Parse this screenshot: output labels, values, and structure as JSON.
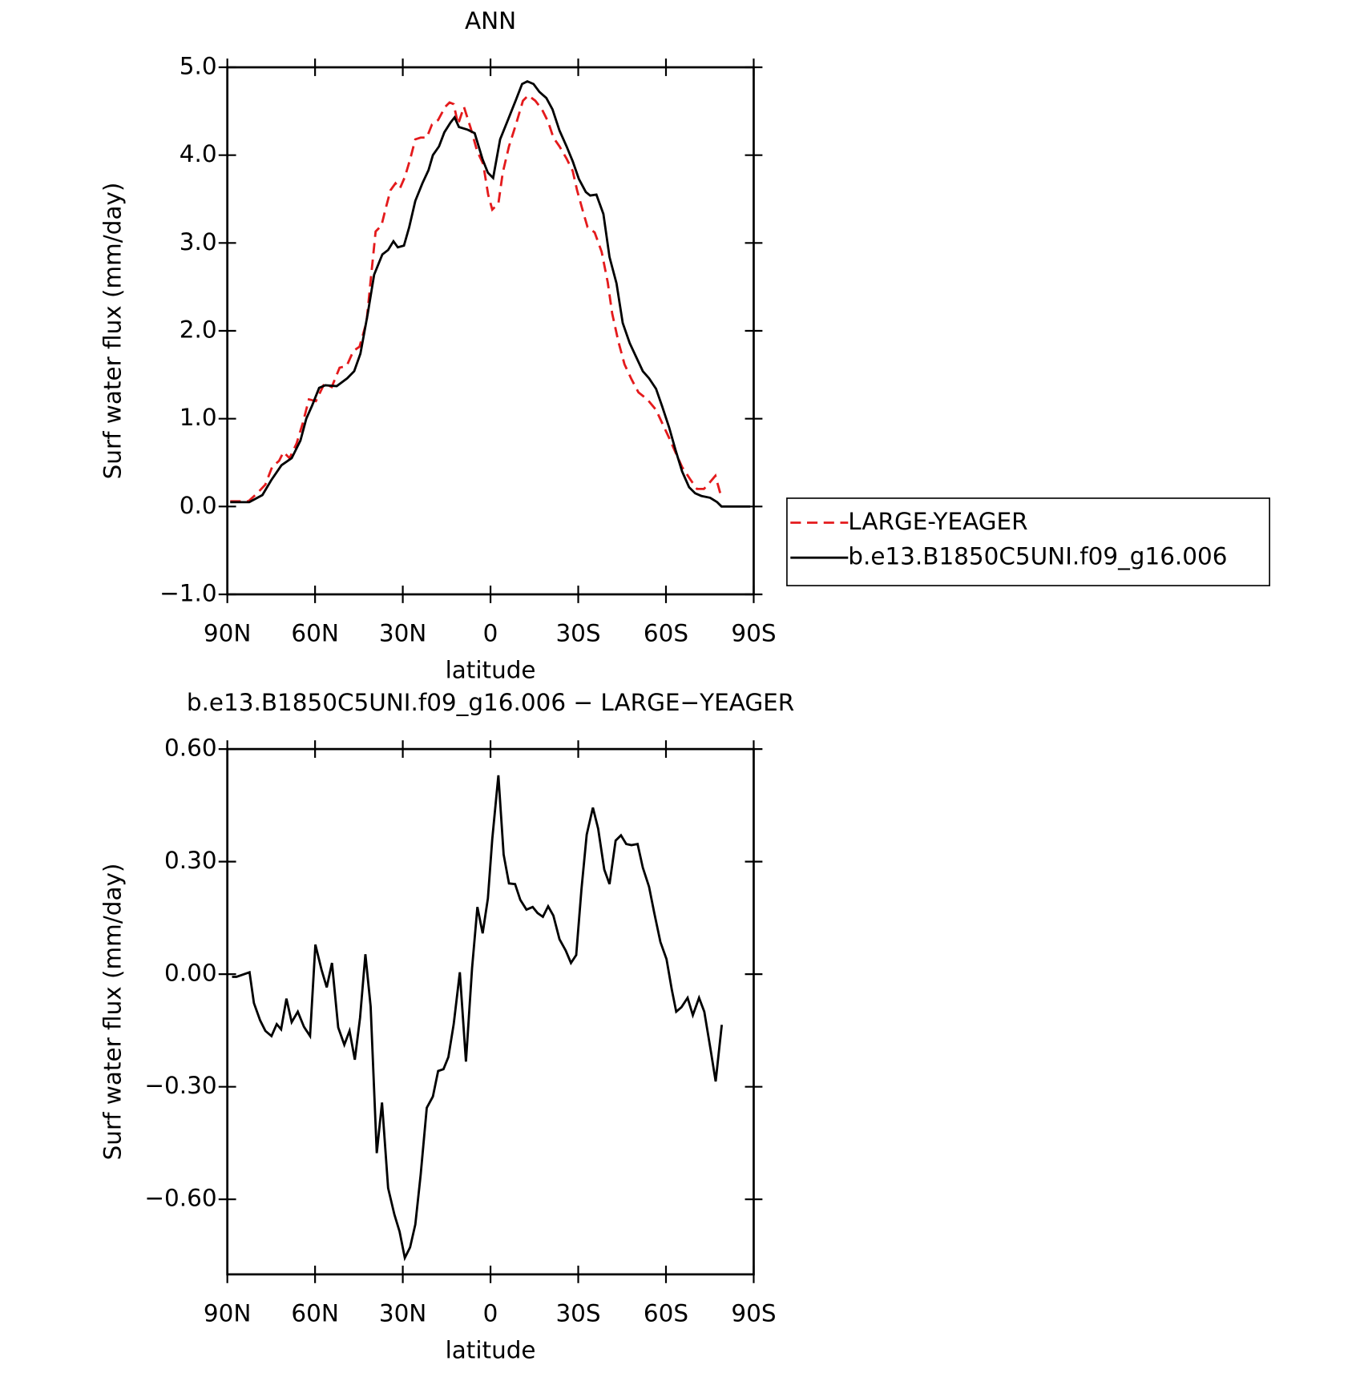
{
  "chart_data": [
    {
      "type": "line",
      "title": "ANN",
      "xlabel": "latitude",
      "ylabel": "Surf water flux (mm/day)",
      "xlim": [
        90,
        -90
      ],
      "ylim": [
        -1.0,
        5.0
      ],
      "xticks": [
        {
          "value": 90,
          "label": "90N"
        },
        {
          "value": 60,
          "label": "60N"
        },
        {
          "value": 30,
          "label": "30N"
        },
        0,
        {
          "value": -30,
          "label": "30S"
        },
        {
          "value": -60,
          "label": "60S"
        },
        {
          "value": -90,
          "label": "90S"
        }
      ],
      "yticks": [
        {
          "value": -1.0,
          "label": "−1.0"
        },
        {
          "value": 0.0,
          "label": "0.0"
        },
        {
          "value": 1.0,
          "label": "1.0"
        },
        {
          "value": 2.0,
          "label": "2.0"
        },
        {
          "value": 3.0,
          "label": "3.0"
        },
        {
          "value": 4.0,
          "label": "4.0"
        },
        {
          "value": 5.0,
          "label": "5.0"
        }
      ],
      "legend": "right",
      "series": [
        {
          "name": "LARGE-YEAGER",
          "color": "#e41a1c",
          "linestyle": "dashed",
          "x": [
            89,
            82.8,
            79.8,
            77,
            74.7,
            72.3,
            70.8,
            68.7,
            66.3,
            64.2,
            62.1,
            59.7,
            56.8,
            54.3,
            51.6,
            49.2,
            46.9,
            44.8,
            42.4,
            40.9,
            39.3,
            37.3,
            35.8,
            34.2,
            32.5,
            31,
            29.3,
            27.5,
            25.7,
            23.9,
            21.8,
            20,
            17.9,
            15.5,
            14,
            12.6,
            11.1,
            9.1,
            6.7,
            4.6,
            2.5,
            0.8,
            -0.6,
            -2.7,
            -4.2,
            -6.3,
            -8.7,
            -11.1,
            -12.9,
            -15.3,
            -17.6,
            -19.7,
            -21.5,
            -23.6,
            -26,
            -28.1,
            -29.6,
            -31.7,
            -33.2,
            -35.6,
            -38,
            -40.1,
            -41.6,
            -43.7,
            -45.8,
            -48.2,
            -50.6,
            -53.6,
            -56.6,
            -58.7,
            -61.1,
            -63.2,
            -65.5,
            -68.5,
            -70.6,
            -73,
            -75.1,
            -76.9,
            -79
          ],
          "values": [
            0.06,
            0.06,
            0.15,
            0.25,
            0.45,
            0.52,
            0.62,
            0.55,
            0.72,
            0.95,
            1.22,
            1.2,
            1.4,
            1.36,
            1.58,
            1.6,
            1.77,
            1.82,
            2.1,
            2.6,
            3.13,
            3.2,
            3.4,
            3.6,
            3.68,
            3.62,
            3.75,
            3.95,
            4.18,
            4.2,
            4.2,
            4.35,
            4.4,
            4.55,
            4.6,
            4.58,
            4.35,
            4.55,
            4.3,
            4.05,
            3.9,
            3.55,
            3.38,
            3.45,
            3.8,
            4.1,
            4.35,
            4.62,
            4.68,
            4.62,
            4.52,
            4.38,
            4.2,
            4.1,
            3.96,
            3.82,
            3.6,
            3.35,
            3.18,
            3.12,
            2.9,
            2.55,
            2.2,
            1.88,
            1.62,
            1.45,
            1.3,
            1.22,
            1.1,
            0.95,
            0.78,
            0.62,
            0.45,
            0.3,
            0.2,
            0.2,
            0.28,
            0.35,
            0.1
          ]
        },
        {
          "name": "b.e13.B1850C5UNI.f09_g16.006",
          "color": "#000000",
          "linestyle": "solid",
          "x": [
            89,
            82.5,
            78,
            75,
            71.5,
            68,
            65,
            63,
            61,
            58.6,
            56.5,
            52.6,
            49,
            46.6,
            44.5,
            42,
            39.8,
            37,
            35,
            33.2,
            31.7,
            29.6,
            27.8,
            25.7,
            23.3,
            21.2,
            19.7,
            17.6,
            15.8,
            13.7,
            12.3,
            10.8,
            7.8,
            5.4,
            2.7,
            0.9,
            -0.9,
            -3.3,
            -5.7,
            -8.7,
            -10.8,
            -12.6,
            -14.7,
            -16.7,
            -19.1,
            -21.2,
            -23.6,
            -26,
            -28.1,
            -30.2,
            -32.6,
            -34.1,
            -36.2,
            -38.6,
            -40.7,
            -43.1,
            -45.2,
            -47.6,
            -49.7,
            -52.1,
            -54.2,
            -56.6,
            -58.7,
            -61.1,
            -63.2,
            -65.5,
            -67.9,
            -70,
            -72.1,
            -75.1,
            -77.5,
            -79,
            -85,
            -88.8
          ],
          "values": [
            0.05,
            0.05,
            0.13,
            0.3,
            0.47,
            0.55,
            0.75,
            1.0,
            1.15,
            1.35,
            1.38,
            1.37,
            1.46,
            1.54,
            1.74,
            2.19,
            2.64,
            2.87,
            2.92,
            3.02,
            2.95,
            2.97,
            3.18,
            3.48,
            3.68,
            3.83,
            4.0,
            4.1,
            4.26,
            4.37,
            4.43,
            4.32,
            4.29,
            4.25,
            3.95,
            3.8,
            3.74,
            4.18,
            4.38,
            4.63,
            4.81,
            4.84,
            4.81,
            4.72,
            4.65,
            4.52,
            4.28,
            4.1,
            3.93,
            3.73,
            3.58,
            3.54,
            3.55,
            3.33,
            2.84,
            2.54,
            2.09,
            1.86,
            1.71,
            1.54,
            1.46,
            1.34,
            1.14,
            0.9,
            0.65,
            0.4,
            0.22,
            0.15,
            0.12,
            0.1,
            0.05,
            0.0,
            0.0,
            0.0
          ]
        }
      ]
    },
    {
      "type": "line",
      "title": "b.e13.B1850C5UNI.f09_g16.006 − LARGE−YEAGER",
      "xlabel": "latitude",
      "ylabel": "Surf water flux (mm/day)",
      "xlim": [
        90,
        -90
      ],
      "ylim": [
        -0.8,
        0.6
      ],
      "xticks": [
        {
          "value": 90,
          "label": "90N"
        },
        {
          "value": 60,
          "label": "60N"
        },
        {
          "value": 30,
          "label": "30N"
        },
        0,
        {
          "value": -30,
          "label": "30S"
        },
        {
          "value": -60,
          "label": "60S"
        },
        {
          "value": -90,
          "label": "90S"
        }
      ],
      "yticks": [
        {
          "value": -0.6,
          "label": "−0.60"
        },
        {
          "value": -0.3,
          "label": "−0.30"
        },
        {
          "value": 0.0,
          "label": "0.00"
        },
        {
          "value": 0.3,
          "label": "0.30"
        },
        {
          "value": 0.6,
          "label": "0.60"
        }
      ],
      "series": [
        {
          "color": "#000000",
          "linestyle": "solid",
          "x": [
            88.4,
            86.9,
            82.4,
            80.9,
            78.8,
            77,
            74.9,
            73.1,
            71.6,
            69.8,
            68,
            65.9,
            63.8,
            61.7,
            59.9,
            57.8,
            56,
            54.2,
            52.1,
            50,
            48.2,
            46.4,
            44.6,
            42.8,
            41,
            38.9,
            37.1,
            35,
            32.9,
            31.1,
            29.3,
            27.5,
            25.7,
            23.9,
            21.8,
            19.7,
            17.9,
            16.1,
            14.4,
            12.6,
            10.5,
            8.4,
            6.3,
            4.5,
            2.7,
            0.9,
            -0.6,
            -2.7,
            -4.5,
            -6.3,
            -8.4,
            -10.2,
            -12.3,
            -14.4,
            -16.1,
            -17.9,
            -19.7,
            -21.5,
            -23.6,
            -25.7,
            -27.5,
            -29.3,
            -31.1,
            -32.9,
            -35,
            -36.8,
            -38.9,
            -40.7,
            -42.8,
            -44.6,
            -46.4,
            -48.2,
            -50.3,
            -52.1,
            -54.2,
            -56,
            -58.1,
            -60.2,
            -62,
            -63.5,
            -65.3,
            -67.4,
            -69.2,
            -71.3,
            -73.1,
            -75.2,
            -77,
            -79.1
          ],
          "values": [
            -0.007,
            -0.007,
            0.005,
            -0.077,
            -0.123,
            -0.151,
            -0.165,
            -0.133,
            -0.147,
            -0.065,
            -0.128,
            -0.1,
            -0.14,
            -0.165,
            0.079,
            0.012,
            -0.035,
            0.03,
            -0.142,
            -0.188,
            -0.151,
            -0.228,
            -0.116,
            0.053,
            -0.086,
            -0.477,
            -0.342,
            -0.57,
            -0.64,
            -0.686,
            -0.756,
            -0.728,
            -0.667,
            -0.535,
            -0.356,
            -0.326,
            -0.258,
            -0.253,
            -0.221,
            -0.133,
            0.005,
            -0.233,
            0.016,
            0.179,
            0.109,
            0.202,
            0.36,
            0.53,
            0.319,
            0.242,
            0.24,
            0.198,
            0.172,
            0.179,
            0.163,
            0.153,
            0.181,
            0.156,
            0.093,
            0.063,
            0.03,
            0.051,
            0.226,
            0.372,
            0.444,
            0.388,
            0.279,
            0.24,
            0.356,
            0.37,
            0.347,
            0.344,
            0.347,
            0.284,
            0.233,
            0.163,
            0.086,
            0.04,
            -0.042,
            -0.1,
            -0.088,
            -0.063,
            -0.109,
            -0.063,
            -0.1,
            -0.198,
            -0.286,
            -0.135
          ]
        }
      ]
    }
  ]
}
